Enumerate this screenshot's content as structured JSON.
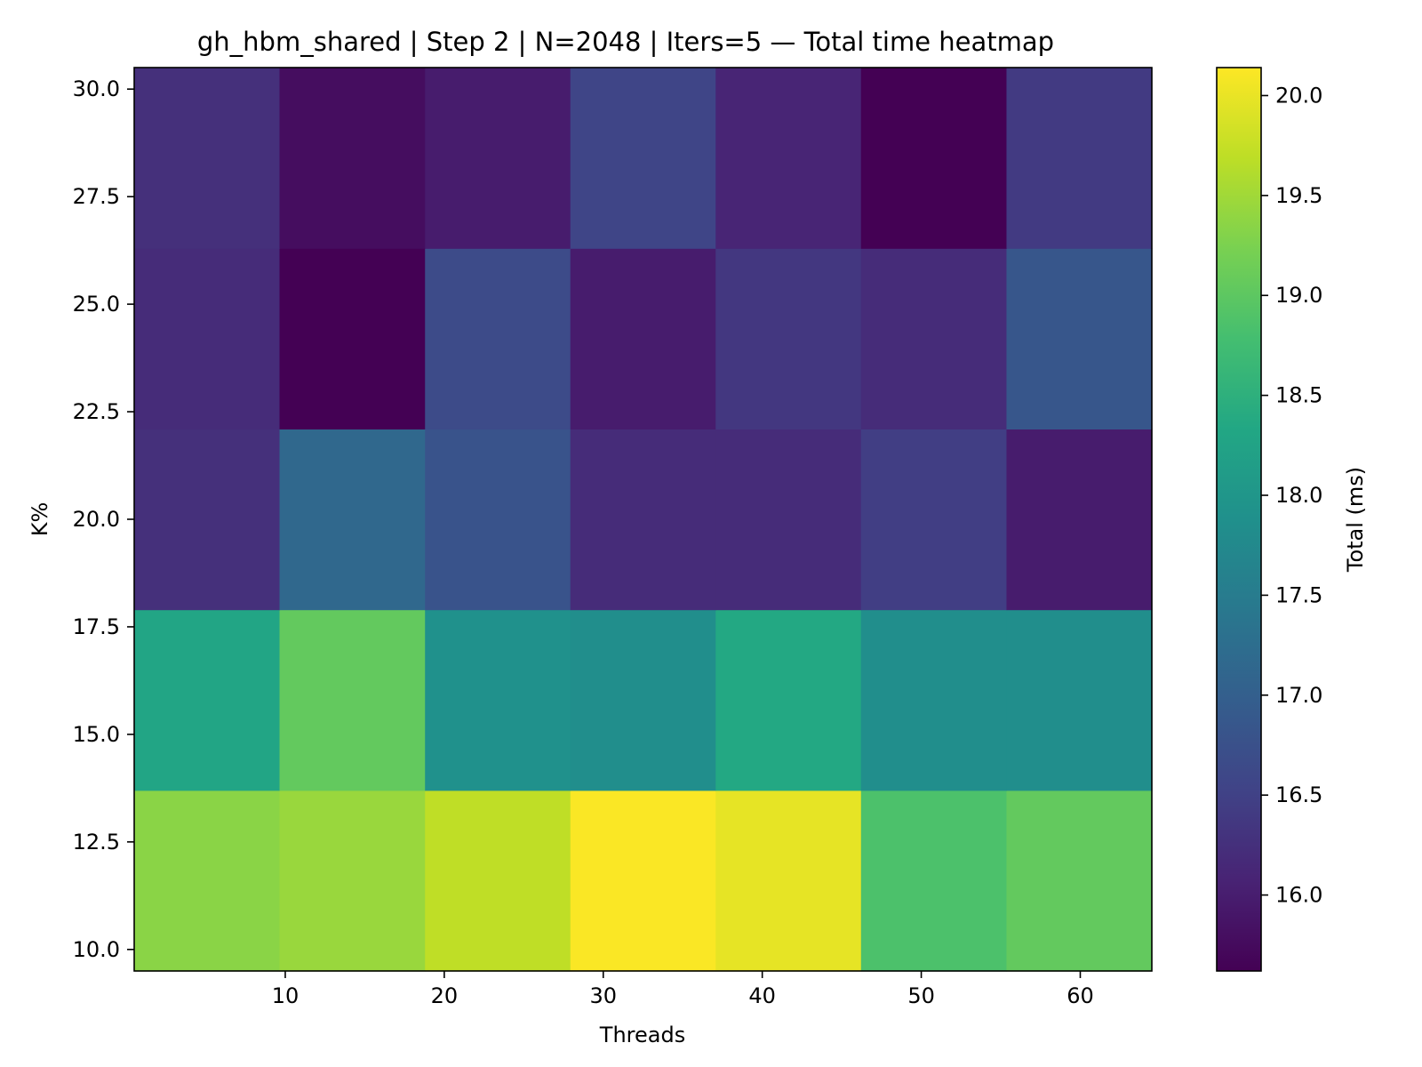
{
  "chart_data": {
    "type": "heatmap",
    "title": "gh_hbm_shared | Step 2 | N=2048 | Iters=5 — Total time heatmap",
    "xlabel": "Threads",
    "ylabel": "K%",
    "colorbar_label": "Total (ms)",
    "colormap": "viridis",
    "xlim": [
      0.5,
      64.5
    ],
    "ylim": [
      9.5,
      30.5
    ],
    "x_ticks": [
      10,
      20,
      30,
      40,
      50,
      60
    ],
    "y_ticks": [
      10.0,
      12.5,
      15.0,
      17.5,
      20.0,
      22.5,
      25.0,
      27.5,
      30.0
    ],
    "x_edges": [
      0.5,
      9.64,
      18.79,
      27.93,
      37.07,
      46.21,
      55.36,
      64.5
    ],
    "y_edges": [
      9.5,
      13.7,
      17.9,
      22.1,
      26.3,
      30.5
    ],
    "clim": [
      15.62,
      20.14
    ],
    "colorbar_ticks": [
      16.0,
      16.5,
      17.0,
      17.5,
      18.0,
      18.5,
      19.0,
      19.5,
      20.0
    ],
    "values": [
      [
        19.35,
        19.45,
        19.7,
        20.12,
        19.98,
        18.85,
        19.05
      ],
      [
        18.3,
        19.05,
        17.9,
        17.85,
        18.35,
        17.85,
        17.85
      ],
      [
        16.25,
        17.15,
        16.8,
        16.2,
        16.2,
        16.45,
        15.98
      ],
      [
        16.2,
        15.62,
        16.65,
        15.98,
        16.35,
        16.2,
        16.85
      ],
      [
        16.25,
        15.78,
        15.98,
        16.55,
        16.1,
        15.62,
        16.4
      ]
    ]
  }
}
